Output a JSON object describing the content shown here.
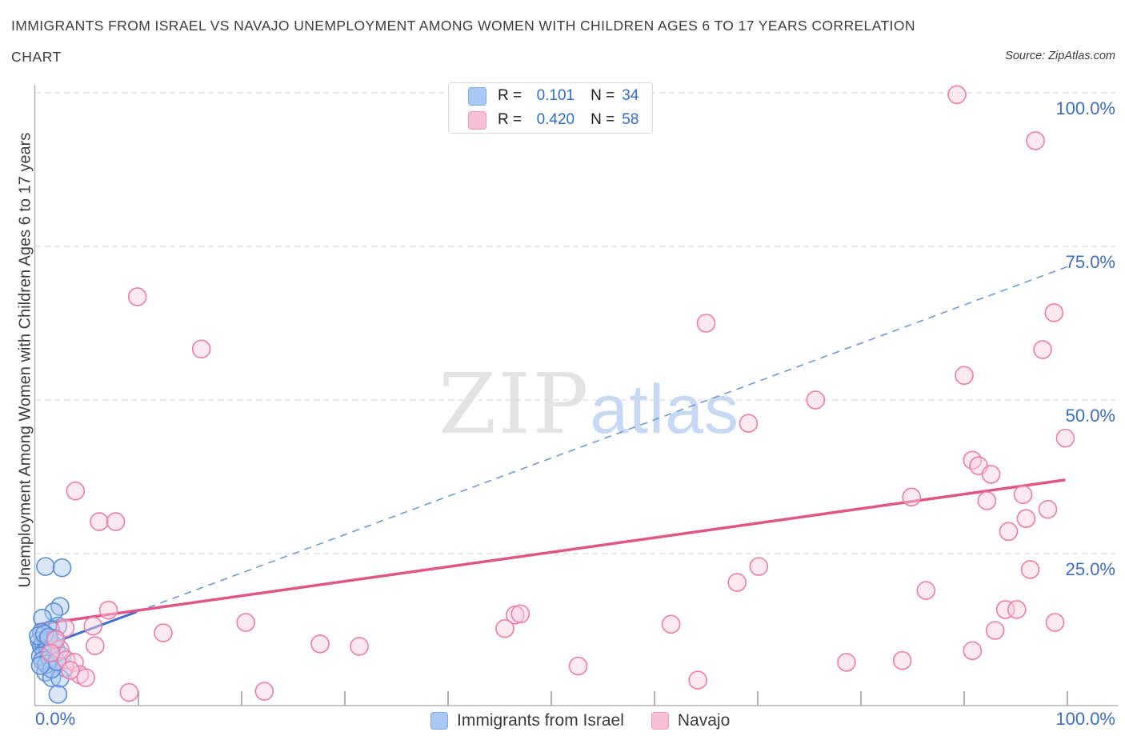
{
  "header": {
    "title_line1": "IMMIGRANTS FROM ISRAEL VS NAVAJO UNEMPLOYMENT AMONG WOMEN WITH CHILDREN AGES 6 TO 17 YEARS CORRELATION",
    "title_line2": "CHART",
    "source": "Source: ZipAtlas.com"
  },
  "watermark": {
    "zip": "ZIP",
    "atlas": "atlas"
  },
  "correlation_legend": {
    "rows": [
      {
        "series": "Immigrants from Israel",
        "r_label": "R =",
        "r_value": "0.101",
        "n_label": "N =",
        "n_value": "34"
      },
      {
        "series": "Navajo",
        "r_label": "R =",
        "r_value": "0.420",
        "n_label": "N =",
        "n_value": "58"
      }
    ]
  },
  "bottom_legend": {
    "items": [
      {
        "label": "Immigrants from Israel",
        "color": "#a9c9f4",
        "border": "#7ca7e8"
      },
      {
        "label": "Navajo",
        "color": "#f8c0d4",
        "border": "#f096bc"
      }
    ]
  },
  "chart_data": {
    "type": "scatter",
    "title": "Immigrants from Israel vs Navajo Unemployment Among Women with Children Ages 6 to 17 years Correlation Chart",
    "xlabel": "",
    "ylabel": "Unemployment Among Women with Children Ages 6 to 17 years",
    "xlim": [
      0,
      100
    ],
    "ylim": [
      0,
      100
    ],
    "x_axis_labels": [
      {
        "value": 0,
        "label": "0.0%"
      },
      {
        "value": 100,
        "label": "100.0%"
      }
    ],
    "y_ticks": [
      {
        "value": 100,
        "label": "100.0%"
      },
      {
        "value": 75,
        "label": "75.0%"
      },
      {
        "value": 50,
        "label": "50.0%"
      },
      {
        "value": 25,
        "label": "25.0%"
      }
    ],
    "x_minor_ticks": [
      10,
      20,
      30,
      40,
      50,
      60,
      70,
      80,
      90,
      100
    ],
    "grid": "horizontal-dashed",
    "legend_position": "bottom",
    "series": [
      {
        "name": "Immigrants from Israel",
        "R": 0.101,
        "N": 34,
        "point_stroke": "#5b8cd9",
        "point_fill": "#a9c8f0",
        "points": [
          [
            1.0,
            22.9
          ],
          [
            2.6,
            22.7
          ],
          [
            2.4,
            16.4
          ],
          [
            1.8,
            15.5
          ],
          [
            0.7,
            14.5
          ],
          [
            2.2,
            13.2
          ],
          [
            1.5,
            12.6
          ],
          [
            0.6,
            12.2
          ],
          [
            2.0,
            9.4
          ],
          [
            2.6,
            8.3
          ],
          [
            2.9,
            6.4
          ],
          [
            1.0,
            5.7
          ],
          [
            1.6,
            4.8
          ],
          [
            2.4,
            4.7
          ],
          [
            2.2,
            2.1
          ],
          [
            0.4,
            10.8
          ],
          [
            0.6,
            9.9
          ],
          [
            0.8,
            10.4
          ],
          [
            0.9,
            9.0
          ],
          [
            1.1,
            10.9
          ],
          [
            1.2,
            9.7
          ],
          [
            1.3,
            8.9
          ],
          [
            0.5,
            8.3
          ],
          [
            0.7,
            7.6
          ],
          [
            1.4,
            7.9
          ],
          [
            1.7,
            10.2
          ],
          [
            1.9,
            11.2
          ],
          [
            0.3,
            11.6
          ],
          [
            1.1,
            7.0
          ],
          [
            1.6,
            6.2
          ],
          [
            0.9,
            11.9
          ],
          [
            2.1,
            7.4
          ],
          [
            1.3,
            11.4
          ],
          [
            0.5,
            6.8
          ]
        ]
      },
      {
        "name": "Navajo",
        "R": 0.42,
        "N": 58,
        "point_stroke": "#f07ba8",
        "point_fill": "#f8cedd",
        "points": [
          [
            89.3,
            99.7
          ],
          [
            96.9,
            92.2
          ],
          [
            9.9,
            66.8
          ],
          [
            98.7,
            64.2
          ],
          [
            65.0,
            62.5
          ],
          [
            16.1,
            58.3
          ],
          [
            97.6,
            58.2
          ],
          [
            90.0,
            54.0
          ],
          [
            75.6,
            50.0
          ],
          [
            69.1,
            46.2
          ],
          [
            99.8,
            43.8
          ],
          [
            90.8,
            40.2
          ],
          [
            91.4,
            39.3
          ],
          [
            92.6,
            37.9
          ],
          [
            84.9,
            34.2
          ],
          [
            92.2,
            33.6
          ],
          [
            95.7,
            34.6
          ],
          [
            98.1,
            32.2
          ],
          [
            96.0,
            30.7
          ],
          [
            94.3,
            28.6
          ],
          [
            3.9,
            35.2
          ],
          [
            6.2,
            30.2
          ],
          [
            7.8,
            30.2
          ],
          [
            96.4,
            22.4
          ],
          [
            86.3,
            19.0
          ],
          [
            70.1,
            22.9
          ],
          [
            68.0,
            20.3
          ],
          [
            94.0,
            15.9
          ],
          [
            95.1,
            15.9
          ],
          [
            98.8,
            13.8
          ],
          [
            93.0,
            12.5
          ],
          [
            90.8,
            9.2
          ],
          [
            84.0,
            7.6
          ],
          [
            78.6,
            7.3
          ],
          [
            7.1,
            15.8
          ],
          [
            5.6,
            13.2
          ],
          [
            12.4,
            12.1
          ],
          [
            20.4,
            13.8
          ],
          [
            27.6,
            10.3
          ],
          [
            31.4,
            9.9
          ],
          [
            9.1,
            2.4
          ],
          [
            22.2,
            2.6
          ],
          [
            46.5,
            15.0
          ],
          [
            47.0,
            15.2
          ],
          [
            45.5,
            12.8
          ],
          [
            52.6,
            6.7
          ],
          [
            61.6,
            13.5
          ],
          [
            64.2,
            4.4
          ],
          [
            2.9,
            12.9
          ],
          [
            2.4,
            9.4
          ],
          [
            3.0,
            7.7
          ],
          [
            3.8,
            7.3
          ],
          [
            4.3,
            5.3
          ],
          [
            4.9,
            4.8
          ],
          [
            5.8,
            10.0
          ],
          [
            2.0,
            11.0
          ],
          [
            1.5,
            8.8
          ],
          [
            3.4,
            6.0
          ]
        ]
      }
    ],
    "trend_lines": [
      {
        "series": "Immigrants from Israel",
        "style": "solid-then-dashed",
        "solid_color": "#3f6fd1",
        "dash_color": "#6f97da",
        "start": {
          "x": 0,
          "y": 9.4
        },
        "end": {
          "x": 100,
          "y": 71.7
        },
        "solid_until_x": 9.8
      },
      {
        "series": "Navajo",
        "style": "solid",
        "solid_color": "#e05586",
        "start": {
          "x": 0,
          "y": 13.4
        },
        "end": {
          "x": 99.8,
          "y": 37.0
        }
      }
    ],
    "colors": {
      "axis": "#b3b3b3",
      "tick": "#999999",
      "gridline": "#dcdcdc",
      "tick_label": "#3a6cd0"
    }
  }
}
